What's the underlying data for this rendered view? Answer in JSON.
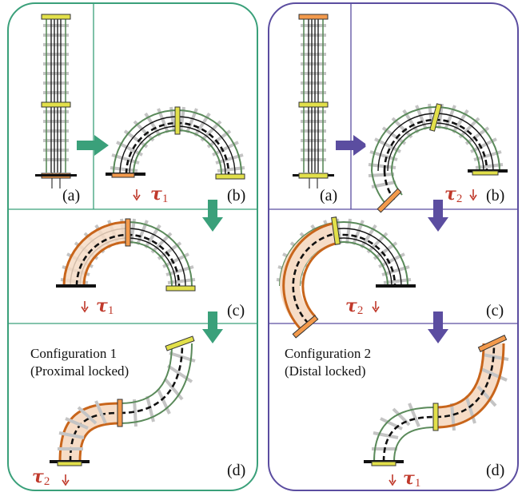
{
  "colors": {
    "left_panel": "#3aa07a",
    "right_panel": "#5b4da0",
    "locked_track": "#c8651b",
    "locked_fill": "#f6dcc6",
    "cap_yellow": "#e2e04a",
    "cap_orange": "#f39a4c",
    "rail_green": "#5a8a5a",
    "tie_gray": "#c4c4c4",
    "torque_red": "#c0392b"
  },
  "left": {
    "labels": {
      "a": "(a)",
      "b": "(b)",
      "c": "(c)",
      "d": "(d)"
    },
    "config_line1": "Configuration 1",
    "config_line2": "(Proximal locked)",
    "tau_b": {
      "symbol": "τ",
      "sub": "1"
    },
    "tau_c": {
      "symbol": "τ",
      "sub": "1"
    },
    "tau_d": {
      "symbol": "τ",
      "sub": "2"
    }
  },
  "right": {
    "labels": {
      "a": "(a)",
      "b": "(b)",
      "c": "(c)",
      "d": "(d)"
    },
    "config_line1": "Configuration 2",
    "config_line2": "(Distal locked)",
    "tau_b": {
      "symbol": "τ",
      "sub": "2"
    },
    "tau_c": {
      "symbol": "τ",
      "sub": "2"
    },
    "tau_d": {
      "symbol": "τ",
      "sub": "1"
    }
  }
}
